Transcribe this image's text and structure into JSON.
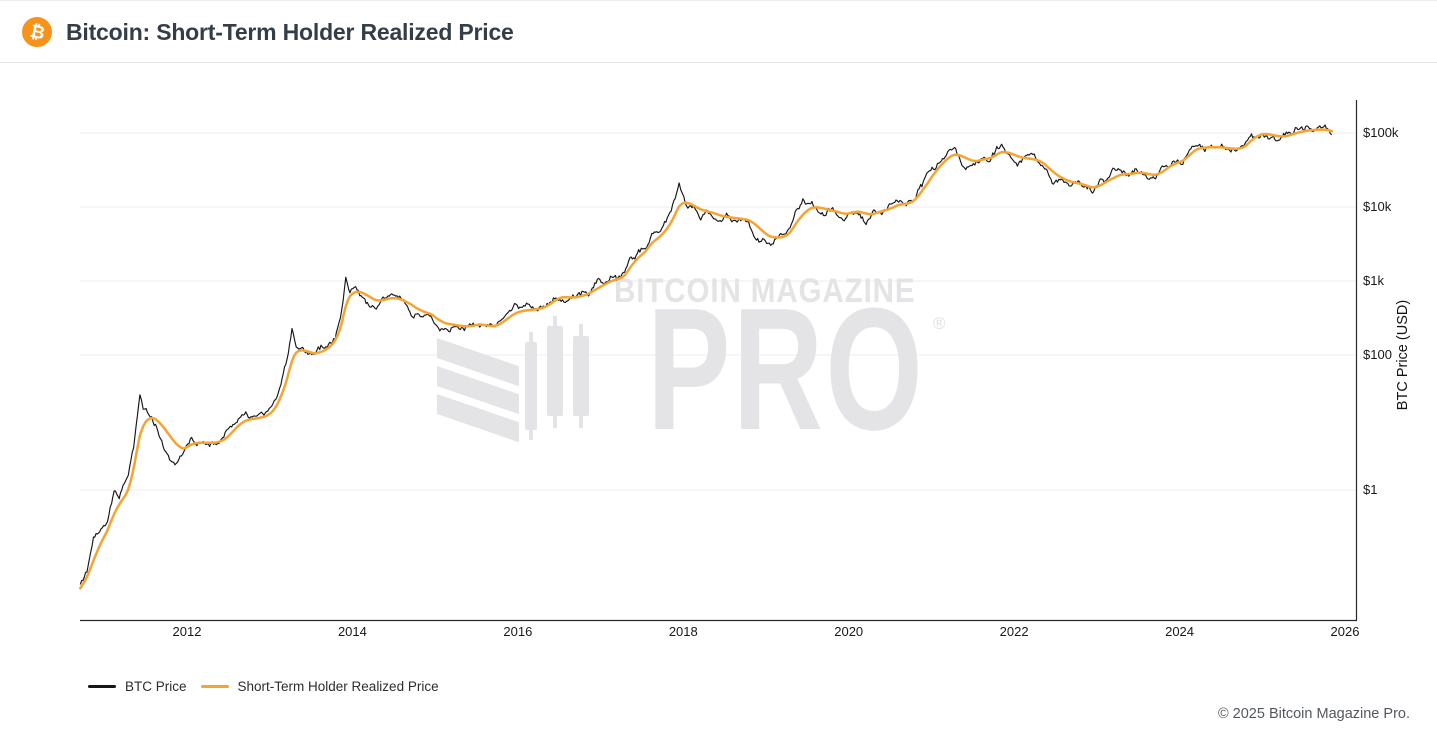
{
  "header": {
    "title": "Bitcoin: Short-Term Holder Realized Price",
    "logo_symbol": "₿",
    "logo_color": "#f7931a"
  },
  "watermark": {
    "line1": "BITCOIN MAGAZINE",
    "line2": "PRO",
    "registered": "®"
  },
  "legend": {
    "items": [
      {
        "label": "BTC Price"
      },
      {
        "label": "Short-Term Holder Realized Price"
      }
    ]
  },
  "footer": {
    "copyright": "© 2025 Bitcoin Magazine Pro."
  },
  "colors": {
    "btc_line": "#161616",
    "sth_line": "#F6A431",
    "grid": "#ededee",
    "axis": "#26292d",
    "tick_text": "#17191c",
    "watermark": "#e4e4e6"
  },
  "chart_data": {
    "type": "line",
    "title": "Bitcoin: Short-Term Holder Realized Price",
    "grid": true,
    "legend_position": "bottom",
    "x_axis": {
      "label": "",
      "ticks": [
        2012,
        2014,
        2016,
        2018,
        2020,
        2022,
        2024,
        2026
      ],
      "range": [
        2010.7,
        2026.3
      ]
    },
    "y_axis": {
      "label": "BTC Price (USD)",
      "scale": "log",
      "ticks": [
        {
          "value": 100000,
          "label": "$100k"
        },
        {
          "value": 10000,
          "label": "$10k"
        },
        {
          "value": 1000,
          "label": "$1k"
        },
        {
          "value": 100,
          "label": "$100"
        },
        {
          "value": 1,
          "label": "$1"
        }
      ]
    },
    "series": [
      {
        "name": "BTC Price",
        "color": "#161616"
      },
      {
        "name": "Short-Term Holder Realized Price",
        "color": "#F6A431"
      }
    ],
    "points_format": [
      "year_fraction",
      "btc_price_usd",
      "sth_realized_price_usd"
    ],
    "points": [
      [
        2010.71,
        0.04,
        0.035
      ],
      [
        2010.79,
        0.062,
        0.05
      ],
      [
        2010.87,
        0.2,
        0.09
      ],
      [
        2010.96,
        0.25,
        0.17
      ],
      [
        2011.04,
        0.35,
        0.25
      ],
      [
        2011.12,
        0.95,
        0.45
      ],
      [
        2011.18,
        0.8,
        0.62
      ],
      [
        2011.29,
        1.8,
        0.95
      ],
      [
        2011.37,
        6,
        2.4
      ],
      [
        2011.43,
        29,
        7
      ],
      [
        2011.47,
        16,
        10
      ],
      [
        2011.54,
        13,
        12
      ],
      [
        2011.62,
        9.5,
        11.5
      ],
      [
        2011.71,
        5.2,
        8.8
      ],
      [
        2011.79,
        3.2,
        6.4
      ],
      [
        2011.87,
        2.4,
        4.8
      ],
      [
        2011.96,
        4,
        3.9
      ],
      [
        2012.04,
        6.2,
        4.7
      ],
      [
        2012.12,
        5.1,
        5
      ],
      [
        2012.21,
        4.9,
        5
      ],
      [
        2012.29,
        5,
        5
      ],
      [
        2012.37,
        5.15,
        5.05
      ],
      [
        2012.46,
        6.6,
        5.6
      ],
      [
        2012.54,
        8.6,
        7
      ],
      [
        2012.62,
        10.8,
        9
      ],
      [
        2012.71,
        12.3,
        10.8
      ],
      [
        2012.79,
        11.1,
        11.3
      ],
      [
        2012.87,
        12.4,
        11.6
      ],
      [
        2012.96,
        13.4,
        12.4
      ],
      [
        2013.04,
        19,
        14.5
      ],
      [
        2013.12,
        32,
        21
      ],
      [
        2013.21,
        82,
        42
      ],
      [
        2013.27,
        220,
        90
      ],
      [
        2013.32,
        120,
        112
      ],
      [
        2013.37,
        129,
        118
      ],
      [
        2013.46,
        100,
        112
      ],
      [
        2013.54,
        95,
        104
      ],
      [
        2013.62,
        127,
        109
      ],
      [
        2013.71,
        139,
        123
      ],
      [
        2013.79,
        196,
        152
      ],
      [
        2013.87,
        430,
        250
      ],
      [
        2013.92,
        1120,
        490
      ],
      [
        2013.97,
        745,
        650
      ],
      [
        2014.04,
        815,
        735
      ],
      [
        2014.12,
        565,
        700
      ],
      [
        2014.21,
        450,
        612
      ],
      [
        2014.29,
        448,
        540
      ],
      [
        2014.37,
        592,
        548
      ],
      [
        2014.46,
        632,
        588
      ],
      [
        2014.54,
        592,
        588
      ],
      [
        2014.62,
        492,
        548
      ],
      [
        2014.71,
        390,
        482
      ],
      [
        2014.79,
        346,
        418
      ],
      [
        2014.87,
        372,
        382
      ],
      [
        2014.96,
        320,
        356
      ],
      [
        2015.04,
        222,
        300
      ],
      [
        2015.12,
        246,
        268
      ],
      [
        2015.21,
        250,
        258
      ],
      [
        2015.29,
        236,
        249
      ],
      [
        2015.37,
        235,
        243
      ],
      [
        2015.46,
        256,
        248
      ],
      [
        2015.54,
        281,
        261
      ],
      [
        2015.62,
        231,
        252
      ],
      [
        2015.71,
        236,
        243
      ],
      [
        2015.79,
        302,
        262
      ],
      [
        2015.87,
        362,
        306
      ],
      [
        2015.96,
        432,
        362
      ],
      [
        2016.04,
        382,
        392
      ],
      [
        2016.12,
        432,
        402
      ],
      [
        2016.21,
        416,
        413
      ],
      [
        2016.29,
        452,
        426
      ],
      [
        2016.37,
        526,
        466
      ],
      [
        2016.46,
        662,
        556
      ],
      [
        2016.54,
        642,
        612
      ],
      [
        2016.62,
        576,
        599
      ],
      [
        2016.71,
        606,
        601
      ],
      [
        2016.79,
        692,
        633
      ],
      [
        2016.87,
        736,
        681
      ],
      [
        2016.96,
        952,
        792
      ],
      [
        2017.04,
        921,
        882
      ],
      [
        2017.12,
        1182,
        992
      ],
      [
        2017.21,
        1082,
        1062
      ],
      [
        2017.29,
        1332,
        1152
      ],
      [
        2017.37,
        2252,
        1602
      ],
      [
        2017.46,
        2452,
        2102
      ],
      [
        2017.54,
        2852,
        2452
      ],
      [
        2017.62,
        4602,
        3302
      ],
      [
        2017.71,
        4352,
        3902
      ],
      [
        2017.79,
        6402,
        4802
      ],
      [
        2017.87,
        9902,
        6602
      ],
      [
        2017.95,
        19000,
        10500
      ],
      [
        2017.99,
        13800,
        11800
      ],
      [
        2018.04,
        10200,
        11600
      ],
      [
        2018.12,
        10300,
        10600
      ],
      [
        2018.21,
        7000,
        9200
      ],
      [
        2018.29,
        9200,
        8700
      ],
      [
        2018.37,
        7500,
        8300
      ],
      [
        2018.46,
        6400,
        7600
      ],
      [
        2018.54,
        7700,
        7300
      ],
      [
        2018.62,
        7000,
        7100
      ],
      [
        2018.71,
        6600,
        6900
      ],
      [
        2018.79,
        6400,
        6700
      ],
      [
        2018.87,
        4000,
        5900
      ],
      [
        2018.96,
        3750,
        4700
      ],
      [
        2019.04,
        3450,
        4000
      ],
      [
        2019.12,
        3850,
        3850
      ],
      [
        2019.21,
        4050,
        3900
      ],
      [
        2019.29,
        5300,
        4400
      ],
      [
        2019.37,
        8500,
        6200
      ],
      [
        2019.46,
        12000,
        8300
      ],
      [
        2019.54,
        10200,
        9700
      ],
      [
        2019.62,
        9600,
        10000
      ],
      [
        2019.71,
        8300,
        9500
      ],
      [
        2019.79,
        9100,
        9000
      ],
      [
        2019.87,
        7550,
        8600
      ],
      [
        2019.96,
        7200,
        8000
      ],
      [
        2020.04,
        9350,
        8300
      ],
      [
        2020.12,
        8550,
        8800
      ],
      [
        2020.21,
        5800,
        8100
      ],
      [
        2020.29,
        8600,
        7900
      ],
      [
        2020.37,
        9450,
        8600
      ],
      [
        2020.46,
        9150,
        9100
      ],
      [
        2020.54,
        11300,
        9900
      ],
      [
        2020.62,
        11650,
        10900
      ],
      [
        2020.71,
        10800,
        11000
      ],
      [
        2020.79,
        13800,
        12000
      ],
      [
        2020.87,
        19600,
        15400
      ],
      [
        2020.96,
        28900,
        21500
      ],
      [
        2021.04,
        33100,
        29000
      ],
      [
        2021.12,
        45200,
        37500
      ],
      [
        2021.21,
        58800,
        46500
      ],
      [
        2021.28,
        63500,
        52500
      ],
      [
        2021.37,
        37300,
        49000
      ],
      [
        2021.46,
        35500,
        43500
      ],
      [
        2021.54,
        41500,
        41000
      ],
      [
        2021.62,
        47100,
        44000
      ],
      [
        2021.71,
        43800,
        45500
      ],
      [
        2021.79,
        61300,
        51000
      ],
      [
        2021.85,
        67500,
        56500
      ],
      [
        2021.96,
        46200,
        53500
      ],
      [
        2022.04,
        38500,
        48500
      ],
      [
        2022.12,
        43200,
        45800
      ],
      [
        2022.21,
        45500,
        44800
      ],
      [
        2022.29,
        37700,
        43000
      ],
      [
        2022.37,
        31800,
        38500
      ],
      [
        2022.46,
        20000,
        30500
      ],
      [
        2022.54,
        23300,
        26000
      ],
      [
        2022.62,
        20000,
        23500
      ],
      [
        2022.71,
        19400,
        21500
      ],
      [
        2022.79,
        20500,
        20800
      ],
      [
        2022.87,
        17100,
        19600
      ],
      [
        2022.96,
        16550,
        18000
      ],
      [
        2023.04,
        23100,
        19500
      ],
      [
        2023.12,
        23150,
        22000
      ],
      [
        2023.21,
        28500,
        25000
      ],
      [
        2023.29,
        29250,
        27500
      ],
      [
        2023.37,
        27200,
        27800
      ],
      [
        2023.46,
        30450,
        28500
      ],
      [
        2023.54,
        29250,
        29300
      ],
      [
        2023.62,
        26000,
        28000
      ],
      [
        2023.71,
        26950,
        26800
      ],
      [
        2023.79,
        34650,
        29500
      ],
      [
        2023.87,
        37700,
        34500
      ],
      [
        2023.96,
        42250,
        39500
      ],
      [
        2024.04,
        42550,
        41500
      ],
      [
        2024.12,
        61150,
        50000
      ],
      [
        2024.2,
        71500,
        60500
      ],
      [
        2024.29,
        60650,
        63500
      ],
      [
        2024.37,
        67500,
        64000
      ],
      [
        2024.46,
        62700,
        64500
      ],
      [
        2024.54,
        64600,
        63500
      ],
      [
        2024.62,
        58950,
        61500
      ],
      [
        2024.71,
        63350,
        61000
      ],
      [
        2024.79,
        70200,
        64500
      ],
      [
        2024.87,
        96400,
        80000
      ],
      [
        2024.96,
        93400,
        94000
      ],
      [
        2025.04,
        102000,
        98000
      ],
      [
        2025.12,
        84350,
        94000
      ],
      [
        2025.21,
        82550,
        90000
      ],
      [
        2025.29,
        94200,
        89500
      ],
      [
        2025.37,
        104600,
        97000
      ],
      [
        2025.46,
        107100,
        103000
      ],
      [
        2025.54,
        116000,
        108000
      ],
      [
        2025.62,
        108250,
        110000
      ],
      [
        2025.71,
        114000,
        111500
      ],
      [
        2025.79,
        110000,
        110500
      ],
      [
        2025.84,
        101000,
        106000
      ]
    ]
  }
}
